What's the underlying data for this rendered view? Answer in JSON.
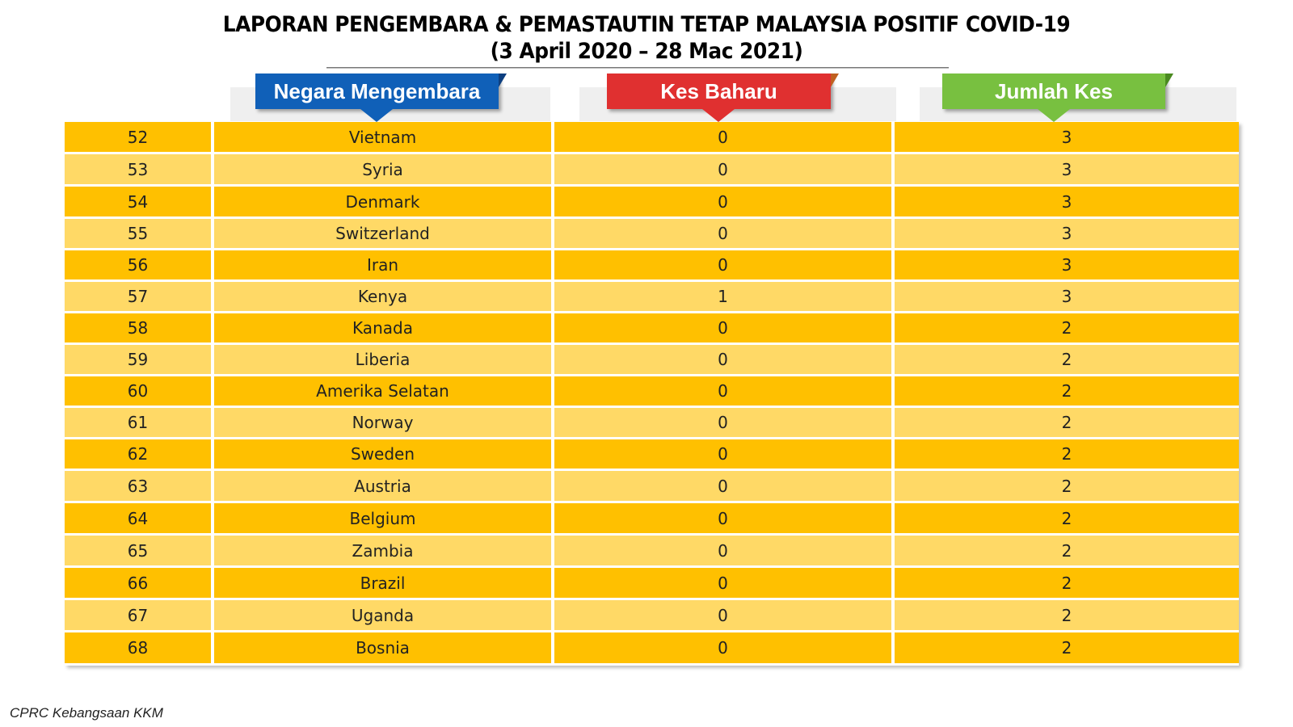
{
  "title": {
    "line1": "LAPORAN PENGEMBARA & PEMASTAUTIN TETAP MALAYSIA POSITIF COVID-19",
    "line2": "(3 April 2020 – 28 Mac 2021)"
  },
  "headers": {
    "country": "Negara Mengembara",
    "new_cases": "Kes Baharu",
    "total_cases": "Jumlah Kes"
  },
  "colors": {
    "header_blue": "#1060b8",
    "header_red": "#e03030",
    "header_green": "#78c040",
    "row_dark": "#ffc000",
    "row_light": "#ffd966"
  },
  "rows": [
    {
      "no": "52",
      "country": "Vietnam",
      "new": "0",
      "total": "3"
    },
    {
      "no": "53",
      "country": "Syria",
      "new": "0",
      "total": "3"
    },
    {
      "no": "54",
      "country": "Denmark",
      "new": "0",
      "total": "3"
    },
    {
      "no": "55",
      "country": "Switzerland",
      "new": "0",
      "total": "3"
    },
    {
      "no": "56",
      "country": "Iran",
      "new": "0",
      "total": "3"
    },
    {
      "no": "57",
      "country": "Kenya",
      "new": "1",
      "total": "3"
    },
    {
      "no": "58",
      "country": "Kanada",
      "new": "0",
      "total": "2"
    },
    {
      "no": "59",
      "country": "Liberia",
      "new": "0",
      "total": "2"
    },
    {
      "no": "60",
      "country": "Amerika Selatan",
      "new": "0",
      "total": "2"
    },
    {
      "no": "61",
      "country": "Norway",
      "new": "0",
      "total": "2"
    },
    {
      "no": "62",
      "country": "Sweden",
      "new": "0",
      "total": "2"
    },
    {
      "no": "63",
      "country": "Austria",
      "new": "0",
      "total": "2"
    },
    {
      "no": "64",
      "country": "Belgium",
      "new": "0",
      "total": "2"
    },
    {
      "no": "65",
      "country": "Zambia",
      "new": "0",
      "total": "2"
    },
    {
      "no": "66",
      "country": "Brazil",
      "new": "0",
      "total": "2"
    },
    {
      "no": "67",
      "country": "Uganda",
      "new": "0",
      "total": "2"
    },
    {
      "no": "68",
      "country": "Bosnia",
      "new": "0",
      "total": "2"
    }
  ],
  "footer": "CPRC Kebangsaan KKM"
}
